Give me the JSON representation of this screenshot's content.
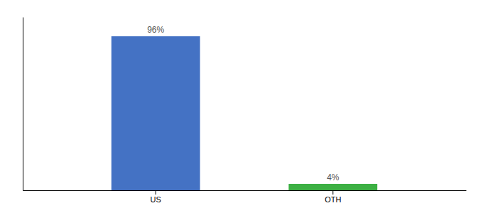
{
  "chart_data": {
    "type": "bar",
    "categories": [
      "US",
      "OTH"
    ],
    "values": [
      96,
      4
    ],
    "value_labels": [
      "96%",
      "4%"
    ],
    "colors": [
      "#4472c4",
      "#3cb043"
    ],
    "ylim": [
      0,
      108
    ],
    "data_labels": true,
    "tick_labels": "x",
    "grid": false
  }
}
